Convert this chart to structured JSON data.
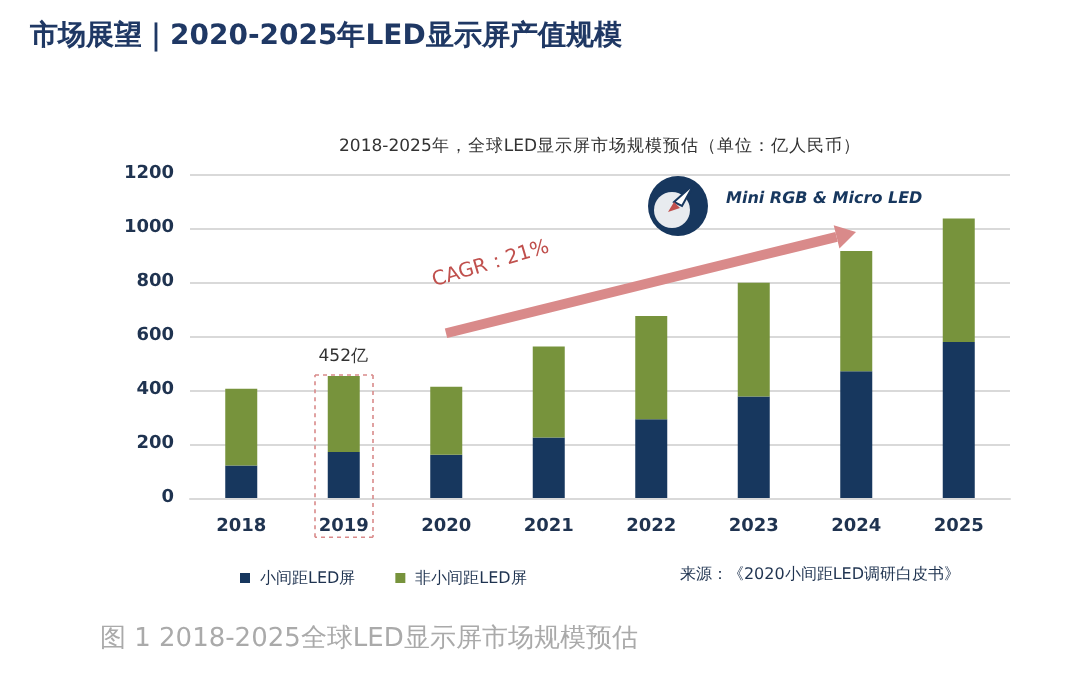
{
  "chart_data": {
    "type": "bar",
    "title": "市场展望｜2020-2025年LED显示屏产值规模",
    "subtitle": "2018-2025年，全球LED显示屏市场规模预估（单位：亿人民币）",
    "categories": [
      "2018",
      "2019",
      "2020",
      "2021",
      "2022",
      "2023",
      "2024",
      "2025"
    ],
    "stacked": true,
    "series": [
      {
        "name": "小间距LED屏",
        "color": "#17375e",
        "values": [
          120,
          170,
          160,
          224,
          292,
          376,
          469,
          578
        ]
      },
      {
        "name": "非小间距LED屏",
        "color": "#77933c",
        "values": [
          285,
          282,
          252,
          337,
          382,
          421,
          446,
          457
        ]
      }
    ],
    "ylim": [
      0,
      1200
    ],
    "yticks": [
      0,
      200,
      400,
      600,
      800,
      1000,
      1200
    ],
    "grid": "y",
    "legend": "bottom left",
    "annotations": [
      {
        "text": "452亿",
        "x": "2019",
        "y": 452
      },
      "CAGR：21%",
      "Mini RGB & Micro LED",
      "来源：《2020小间距LED调研白皮书》",
      "图 1 2018-2025全球LED显示屏市场规模预估"
    ]
  }
}
